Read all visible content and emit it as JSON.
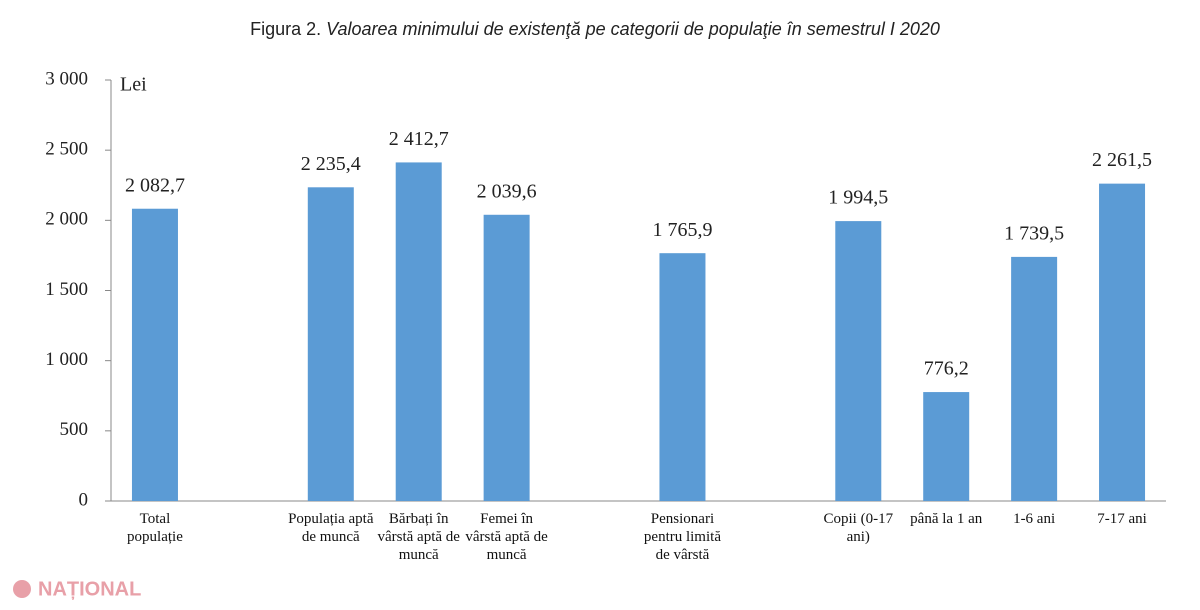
{
  "chart_data": {
    "type": "bar",
    "figure_label": "Figura 2.",
    "title": "Valoarea minimului de existenţă pe categorii de populaţie în semestrul I 2020",
    "unit_label": "Lei",
    "categories": [
      "Total populație",
      null,
      "Populația aptă de muncă",
      "Bărbați în vârstă aptă de muncă",
      "Femei în vârstă aptă de muncă",
      null,
      "Pensionari pentru limită de vârstă",
      null,
      "Copii (0-17 ani)",
      "până la 1 an",
      "1-6 ani",
      "7-17 ani"
    ],
    "values": [
      2082.7,
      null,
      2235.4,
      2412.7,
      2039.6,
      null,
      1765.9,
      null,
      1994.5,
      776.2,
      1739.5,
      2261.5
    ],
    "value_labels": [
      "2 082,7",
      null,
      "2 235,4",
      "2 412,7",
      "2 039,6",
      null,
      "1 765,9",
      null,
      "1 994,5",
      "776,2",
      "1 739,5",
      "2 261,5"
    ],
    "color": "#5b9bd5",
    "ylim": [
      0,
      3000
    ],
    "yticks": [
      0,
      500,
      {
        "value": 1000,
        "label": "1 000"
      },
      {
        "value": 1500,
        "label": "1 500"
      },
      {
        "value": 2000,
        "label": "2 000"
      },
      {
        "value": 2500,
        "label": "2 500"
      },
      {
        "value": 3000,
        "label": "3 000"
      }
    ],
    "watermark": "NAȚIONAL"
  }
}
